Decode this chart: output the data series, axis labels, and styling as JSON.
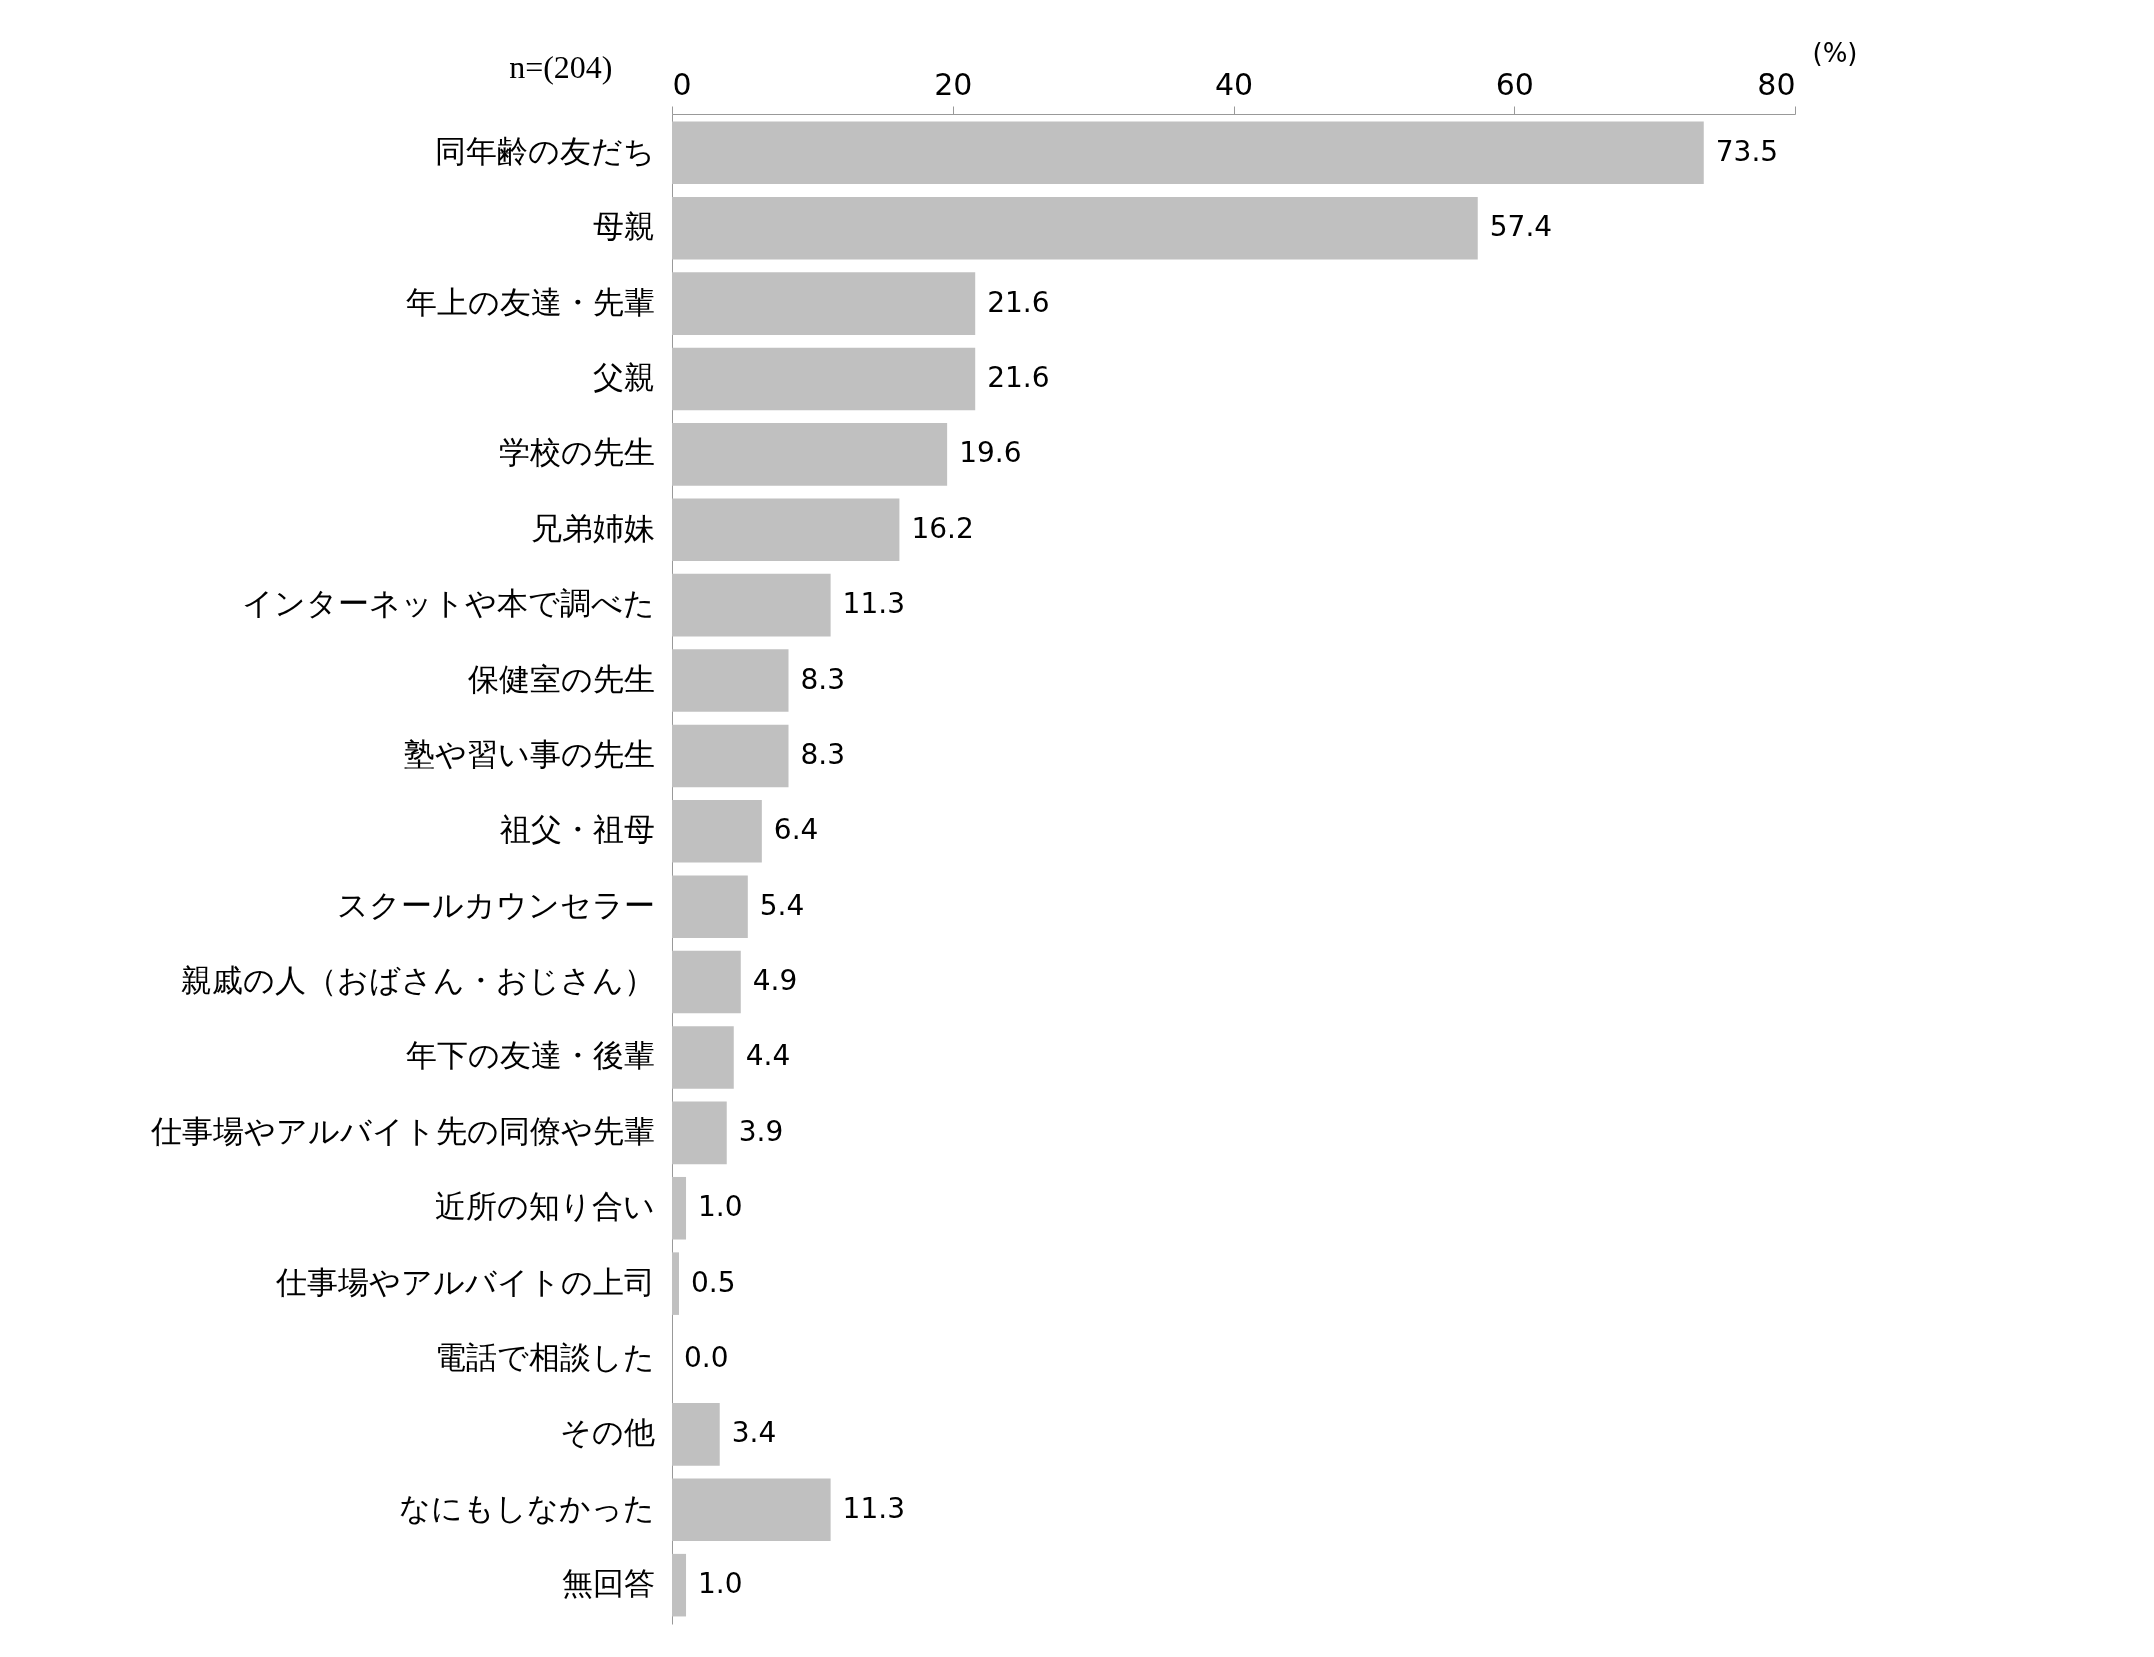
{
  "chart_data": {
    "type": "bar",
    "orientation": "horizontal",
    "xlabel": "(%)",
    "annotations": [
      "n=(204)"
    ],
    "categories": [
      "同年齢の友だち",
      "母親",
      "年上の友達・先輩",
      "父親",
      "学校の先生",
      "兄弟姉妹",
      "インターネットや本で調べた",
      "保健室の先生",
      "塾や習い事の先生",
      "祖父・祖母",
      "スクールカウンセラー",
      "親戚の人（おばさん・おじさん）",
      "年下の友達・後輩",
      "仕事場やアルバイト先の同僚や先輩",
      "近所の知り合い",
      "仕事場やアルバイトの上司",
      "電話で相談した",
      "その他",
      "なにもしなかった",
      "無回答"
    ],
    "values": [
      73.5,
      57.4,
      21.6,
      21.6,
      19.6,
      16.2,
      11.3,
      8.3,
      8.3,
      6.4,
      5.4,
      4.9,
      4.4,
      3.9,
      1.0,
      0.5,
      0.0,
      3.4,
      11.3,
      1.0
    ],
    "value_labels": [
      "73.5",
      "57.4",
      "21.6",
      "21.6",
      "19.6",
      "16.2",
      "11.3",
      "8.3",
      "8.3",
      "6.4",
      "5.4",
      "4.9",
      "4.4",
      "3.9",
      "1.0",
      "0.5",
      "0.0",
      "3.4",
      "11.3",
      "1.0"
    ],
    "color": "#c0c0c0",
    "xlim": [
      0,
      80
    ],
    "xticks": [
      0,
      20,
      40,
      60,
      80
    ],
    "grid": false
  }
}
